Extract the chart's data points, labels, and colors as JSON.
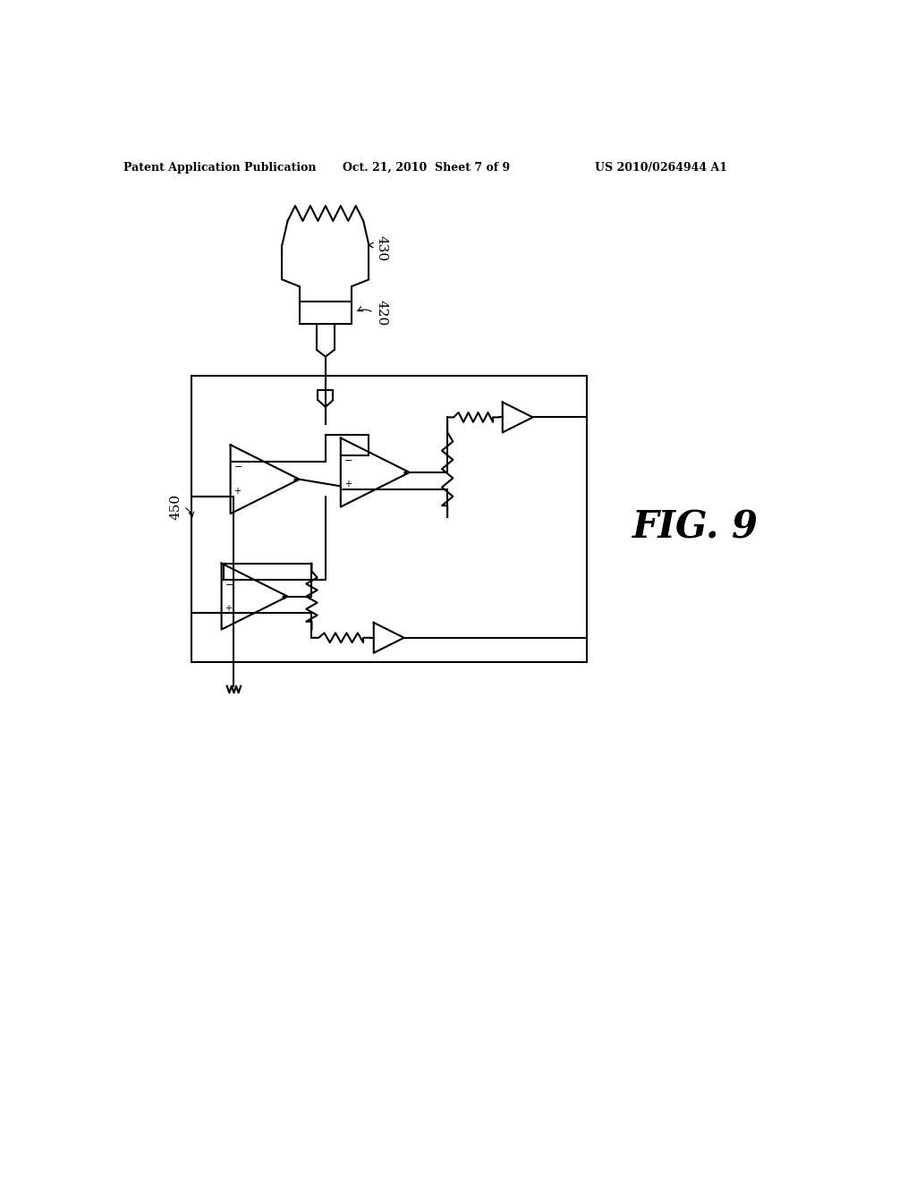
{
  "bg_color": "#ffffff",
  "line_color": "#000000",
  "header_left": "Patent Application Publication",
  "header_mid": "Oct. 21, 2010  Sheet 7 of 9",
  "header_right": "US 2010/0264944 A1",
  "fig_label": "FIG. 9",
  "label_430": "430",
  "label_420": "420",
  "label_450": "450"
}
